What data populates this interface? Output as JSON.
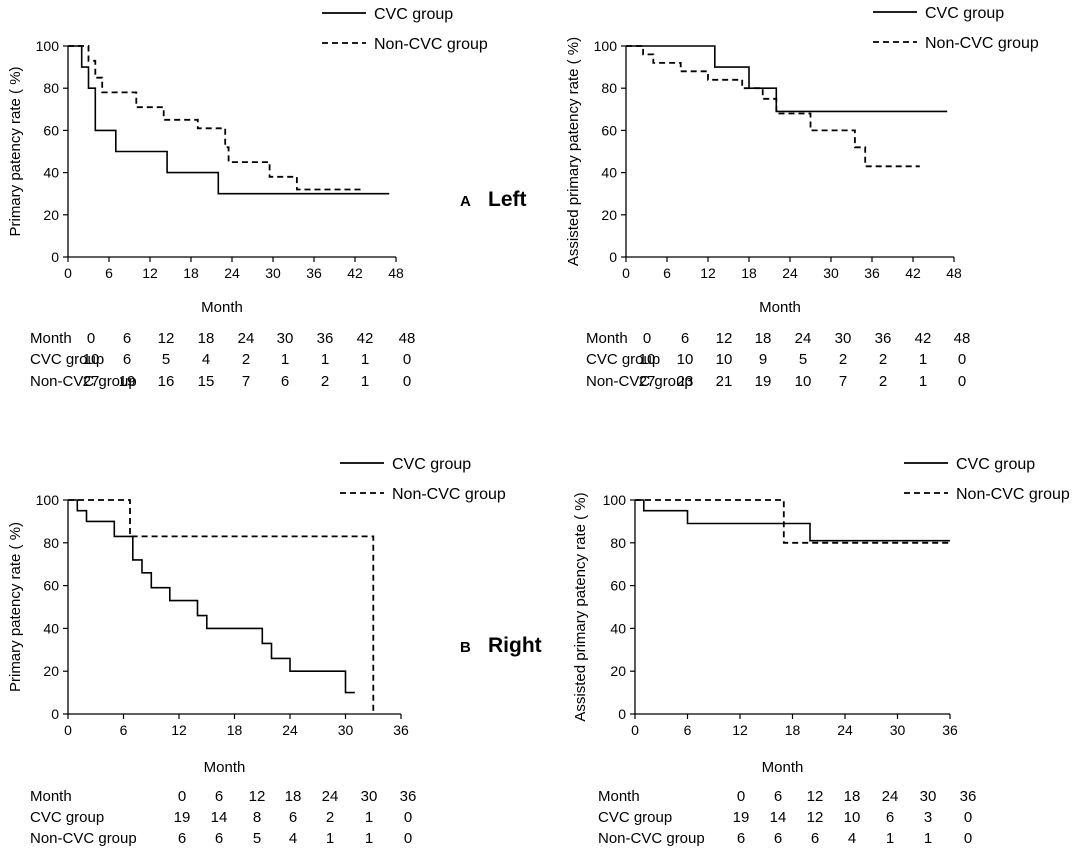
{
  "figure": {
    "letter_a": "A",
    "side_a": "Left",
    "letter_b": "B",
    "side_b": "Right"
  },
  "legend": {
    "cvc": "CVC group",
    "noncvc": "Non-CVC group"
  },
  "chart_data": [
    {
      "type": "line",
      "subtype": "kaplan-meier",
      "title": "",
      "xlabel": "Month",
      "ylabel": "Primary patency rate ( %)",
      "xlim": [
        0,
        48
      ],
      "ylim": [
        0,
        100
      ],
      "xticks": [
        0,
        6,
        12,
        18,
        24,
        30,
        36,
        42,
        48
      ],
      "yticks": [
        0,
        20,
        40,
        60,
        80,
        100
      ],
      "series": [
        {
          "name": "CVC group",
          "style": "solid",
          "x": [
            0,
            2,
            2,
            3,
            3,
            4,
            4,
            7,
            7,
            14.5,
            14.5,
            22,
            22,
            47
          ],
          "y": [
            100,
            100,
            90,
            90,
            80,
            80,
            60,
            60,
            50,
            50,
            40,
            40,
            30,
            30
          ]
        },
        {
          "name": "Non-CVC group",
          "style": "dashed",
          "x": [
            0,
            3,
            3,
            4,
            4,
            5,
            5,
            10,
            10,
            14,
            14,
            19,
            19,
            23,
            23,
            23.5,
            23.5,
            29.5,
            29.5,
            33.5,
            33.5,
            43
          ],
          "y": [
            100,
            100,
            93,
            93,
            85,
            85,
            78,
            78,
            71,
            71,
            65,
            65,
            61,
            61,
            52,
            52,
            45,
            45,
            38,
            38,
            32,
            32
          ]
        }
      ],
      "risk_table": {
        "header": "Month",
        "columns": [
          "0",
          "6",
          "12",
          "18",
          "24",
          "30",
          "36",
          "42",
          "48"
        ],
        "rows": [
          {
            "label": "CVC group",
            "values": [
              "10",
              "6",
              "5",
              "4",
              "2",
              "1",
              "1",
              "1",
              "0"
            ]
          },
          {
            "label": "Non-CVC group",
            "values": [
              "27",
              "19",
              "16",
              "15",
              "7",
              "6",
              "2",
              "1",
              "0"
            ]
          }
        ]
      }
    },
    {
      "type": "line",
      "subtype": "kaplan-meier",
      "title": "",
      "xlabel": "Month",
      "ylabel": "Assisted primary patency rate ( %)",
      "xlim": [
        0,
        48
      ],
      "ylim": [
        0,
        100
      ],
      "xticks": [
        0,
        6,
        12,
        18,
        24,
        30,
        36,
        42,
        48
      ],
      "yticks": [
        0,
        20,
        40,
        60,
        80,
        100
      ],
      "series": [
        {
          "name": "CVC group",
          "style": "solid",
          "x": [
            0,
            13,
            13,
            18,
            18,
            22,
            22,
            47
          ],
          "y": [
            100,
            100,
            90,
            90,
            80,
            80,
            69,
            69
          ]
        },
        {
          "name": "Non-CVC group",
          "style": "dashed",
          "x": [
            0,
            2.5,
            2.5,
            4,
            4,
            8,
            8,
            12,
            12,
            17,
            17,
            20,
            20,
            22,
            22,
            27,
            27,
            33.5,
            33.5,
            35,
            35,
            43
          ],
          "y": [
            100,
            100,
            96,
            96,
            92,
            92,
            88,
            88,
            84,
            84,
            80,
            80,
            75,
            75,
            68,
            68,
            60,
            60,
            52,
            52,
            43,
            43
          ]
        }
      ],
      "risk_table": {
        "header": "Month",
        "columns": [
          "0",
          "6",
          "12",
          "18",
          "24",
          "30",
          "36",
          "42",
          "48"
        ],
        "rows": [
          {
            "label": "CVC group",
            "values": [
              "10",
              "10",
              "10",
              "9",
              "5",
              "2",
              "2",
              "1",
              "0"
            ]
          },
          {
            "label": "Non-CVC group",
            "values": [
              "27",
              "23",
              "21",
              "19",
              "10",
              "7",
              "2",
              "1",
              "0"
            ]
          }
        ]
      }
    },
    {
      "type": "line",
      "subtype": "kaplan-meier",
      "title": "",
      "xlabel": "Month",
      "ylabel": "Primary patency rate ( %)",
      "xlim": [
        0,
        36
      ],
      "ylim": [
        0,
        100
      ],
      "xticks": [
        0,
        6,
        12,
        18,
        24,
        30,
        36
      ],
      "yticks": [
        0,
        20,
        40,
        60,
        80,
        100
      ],
      "series": [
        {
          "name": "CVC group",
          "style": "solid",
          "x": [
            0,
            1,
            1,
            2,
            2,
            5,
            5,
            7,
            7,
            8,
            8,
            9,
            9,
            11,
            11,
            14,
            14,
            15,
            15,
            21,
            21,
            22,
            22,
            24,
            24,
            30,
            30,
            31
          ],
          "y": [
            100,
            100,
            95,
            95,
            90,
            90,
            83,
            83,
            72,
            72,
            66,
            66,
            59,
            59,
            53,
            53,
            46,
            46,
            40,
            40,
            33,
            33,
            26,
            26,
            20,
            20,
            10,
            10
          ]
        },
        {
          "name": "Non-CVC group",
          "style": "dashed",
          "x": [
            0,
            6.7,
            6.7,
            33,
            33
          ],
          "y": [
            100,
            100,
            83,
            83,
            0
          ]
        }
      ],
      "risk_table": {
        "header": "Month",
        "columns": [
          "0",
          "6",
          "12",
          "18",
          "24",
          "30",
          "36"
        ],
        "rows": [
          {
            "label": "CVC group",
            "values": [
              "19",
              "14",
              "8",
              "6",
              "2",
              "1",
              "0"
            ]
          },
          {
            "label": "Non-CVC group",
            "values": [
              "6",
              "6",
              "5",
              "4",
              "1",
              "1",
              "0"
            ]
          }
        ]
      }
    },
    {
      "type": "line",
      "subtype": "kaplan-meier",
      "title": "",
      "xlabel": "Month",
      "ylabel": "Assisted primary patency rate ( %)",
      "xlim": [
        0,
        36
      ],
      "ylim": [
        0,
        100
      ],
      "xticks": [
        0,
        6,
        12,
        18,
        24,
        30,
        36
      ],
      "yticks": [
        0,
        20,
        40,
        60,
        80,
        100
      ],
      "series": [
        {
          "name": "CVC group",
          "style": "solid",
          "x": [
            0,
            1,
            1,
            6,
            6,
            20,
            20,
            36
          ],
          "y": [
            100,
            100,
            95,
            95,
            89,
            89,
            81,
            81
          ]
        },
        {
          "name": "Non-CVC group",
          "style": "dashed",
          "x": [
            0,
            17,
            17,
            36
          ],
          "y": [
            100,
            100,
            80,
            80
          ]
        }
      ],
      "risk_table": {
        "header": "Month",
        "columns": [
          "0",
          "6",
          "12",
          "18",
          "24",
          "30",
          "36"
        ],
        "rows": [
          {
            "label": "CVC group",
            "values": [
              "19",
              "14",
              "12",
              "10",
              "6",
              "3",
              "0"
            ]
          },
          {
            "label": "Non-CVC group",
            "values": [
              "6",
              "6",
              "6",
              "4",
              "1",
              "1",
              "0"
            ]
          }
        ]
      }
    }
  ]
}
